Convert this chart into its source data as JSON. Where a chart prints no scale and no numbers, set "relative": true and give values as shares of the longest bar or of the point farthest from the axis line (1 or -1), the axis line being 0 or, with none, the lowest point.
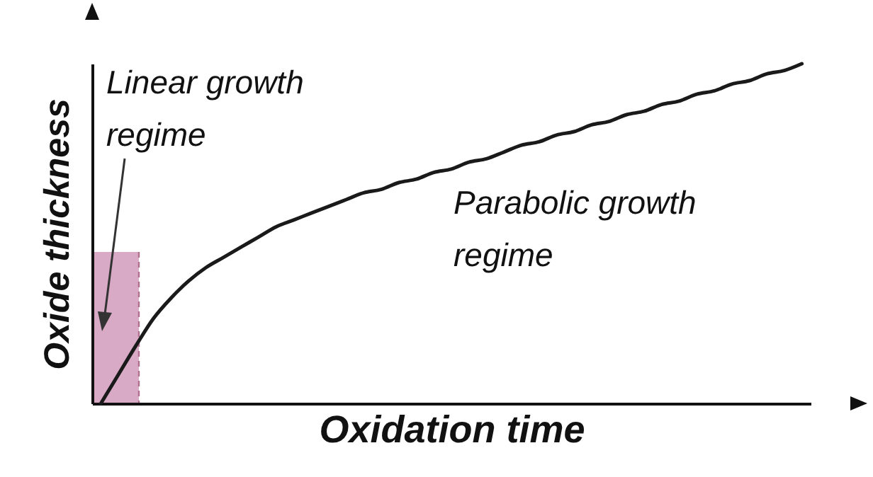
{
  "chart_data": {
    "type": "line",
    "relative": true,
    "xlabel": "Oxidation time",
    "ylabel": "Oxide thickness",
    "annotations": [
      "Linear growth regime",
      "Parabolic growth regime"
    ],
    "categories": [
      null,
      null,
      null,
      null,
      null,
      null,
      null,
      null,
      null,
      null,
      null,
      null,
      null,
      null,
      null,
      null,
      null,
      null,
      null,
      null,
      null,
      null,
      null,
      null,
      null,
      null,
      null,
      null,
      null,
      null,
      null,
      null,
      null,
      null,
      null,
      null,
      null,
      null,
      null,
      null,
      null
    ],
    "series": [
      {
        "color": "#1a1a1a",
        "values": [
          0,
          0.085,
          0.17,
          0.25,
          0.31,
          0.36,
          0.4,
          0.43,
          0.46,
          0.49,
          0.52,
          0.54,
          0.56,
          0.58,
          0.6,
          0.62,
          0.63,
          0.65,
          0.66,
          0.68,
          0.69,
          0.71,
          0.72,
          0.74,
          0.76,
          0.77,
          0.79,
          0.8,
          0.82,
          0.83,
          0.85,
          0.86,
          0.88,
          0.89,
          0.91,
          0.92,
          0.94,
          0.95,
          0.97,
          0.98,
          1
        ]
      }
    ],
    "grid": false,
    "marker": "none",
    "line_style": "solid"
  }
}
